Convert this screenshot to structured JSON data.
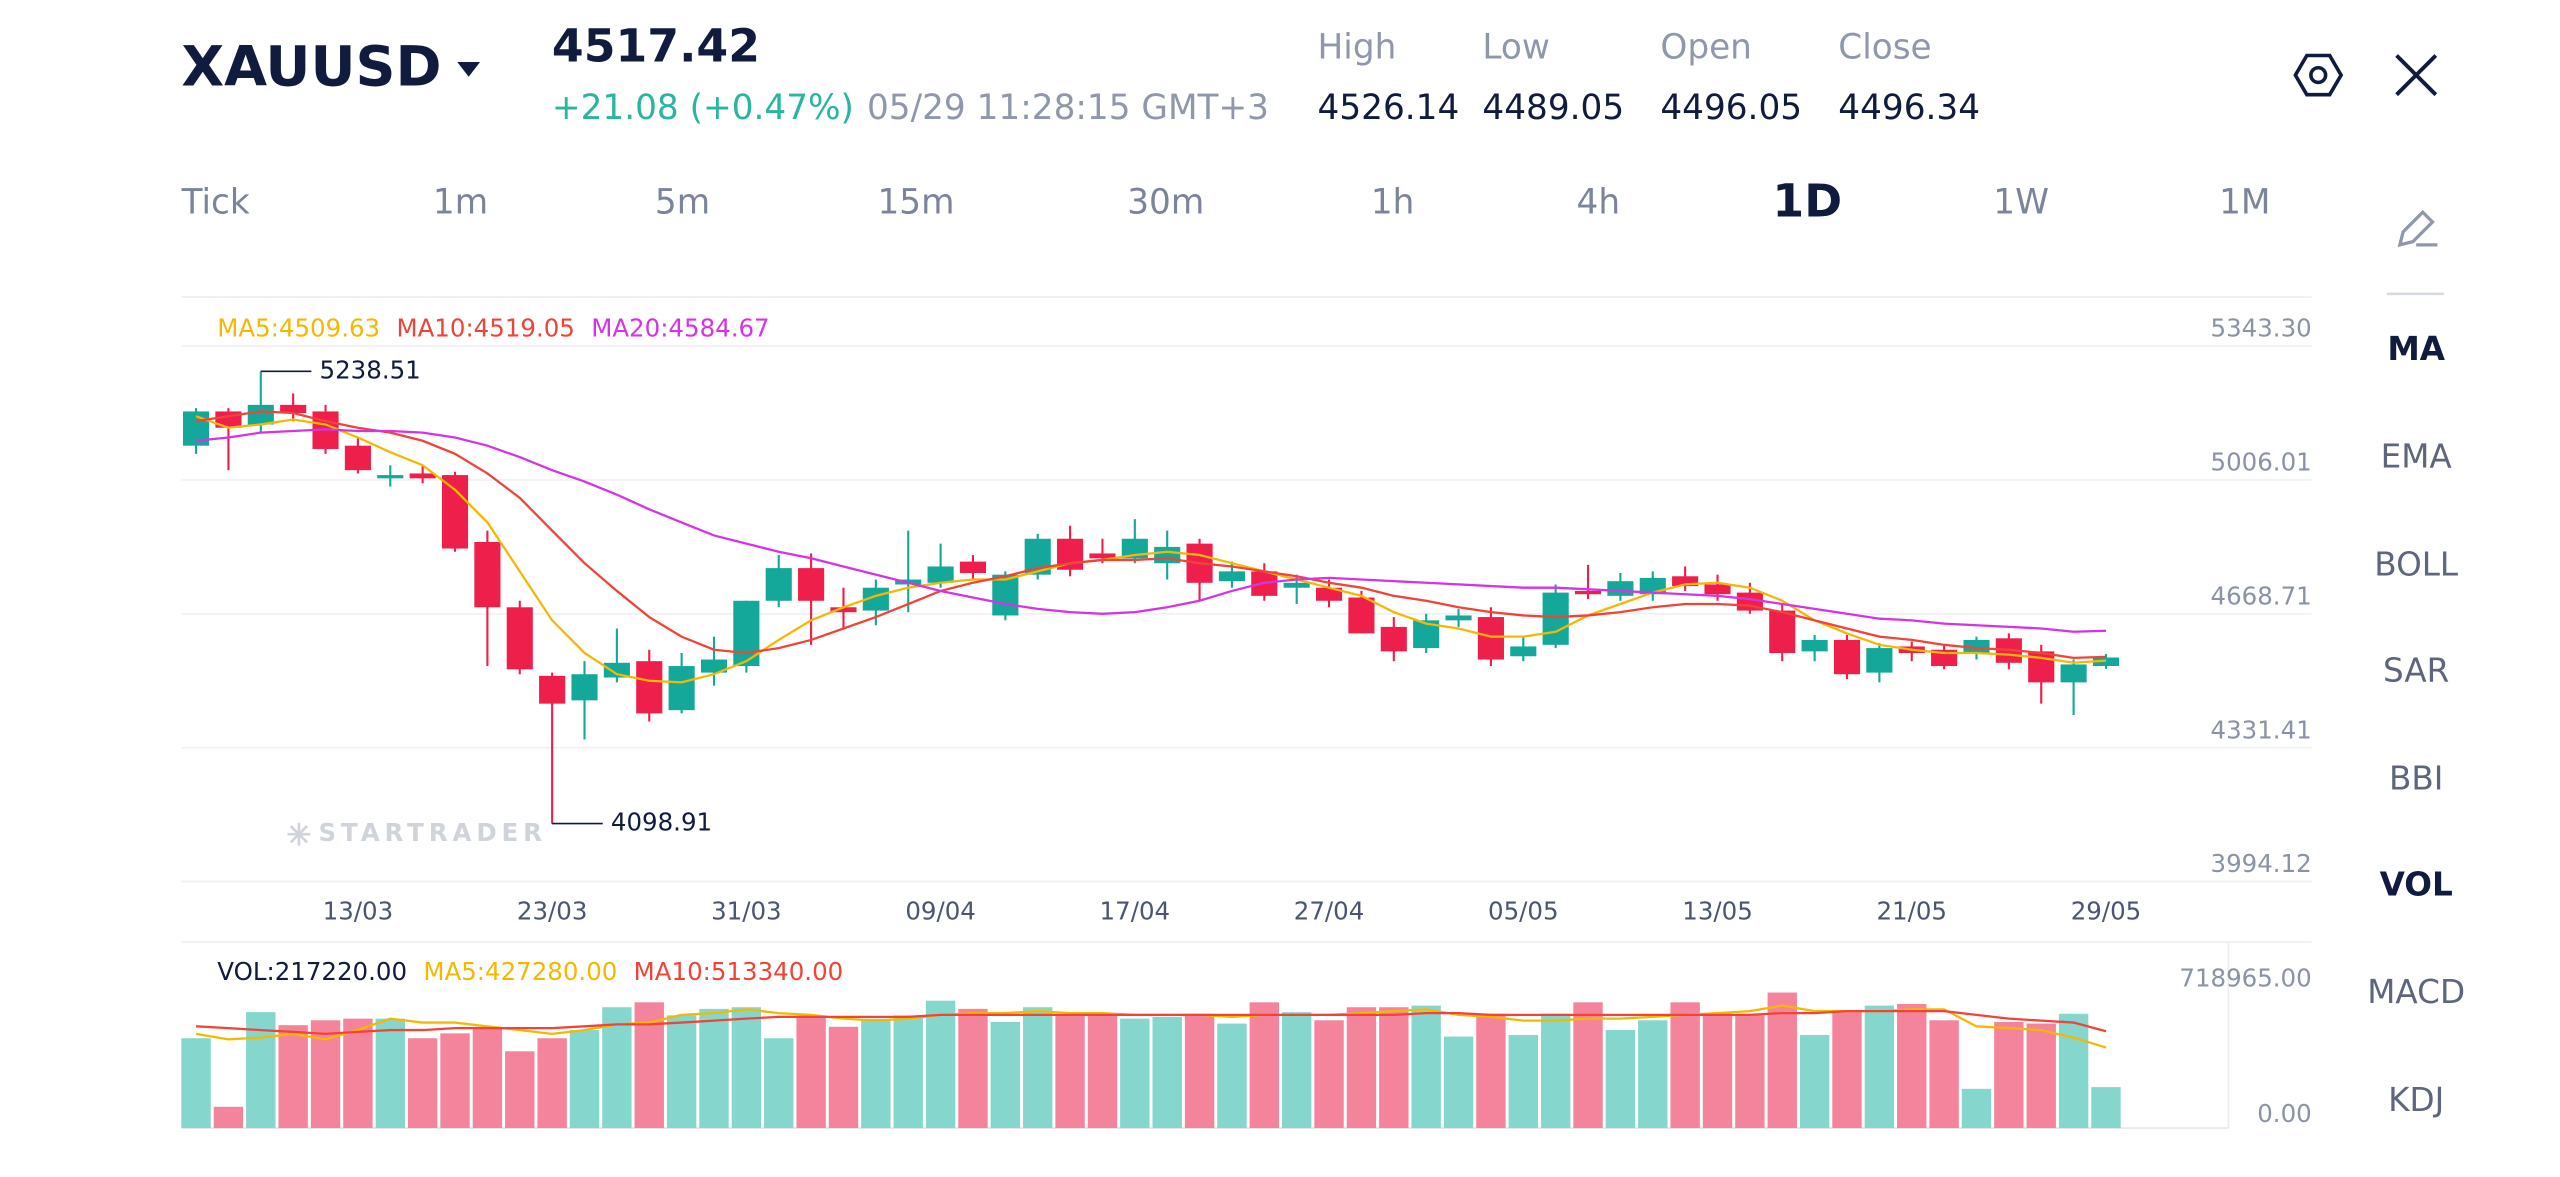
{
  "header": {
    "symbol": "XAUUSD",
    "price": "4517.42",
    "change": "+21.08 (+0.47%)",
    "time": "05/29 11:28:15 GMT+3",
    "stats": [
      {
        "label": "High",
        "value": "4526.14"
      },
      {
        "label": "Low",
        "value": "4489.05"
      },
      {
        "label": "Open",
        "value": "4496.05"
      },
      {
        "label": "Close",
        "value": "4496.34"
      }
    ]
  },
  "timeframes": [
    {
      "label": "Tick"
    },
    {
      "label": "1m"
    },
    {
      "label": "5m"
    },
    {
      "label": "15m"
    },
    {
      "label": "30m"
    },
    {
      "label": "1h"
    },
    {
      "label": "4h"
    },
    {
      "label": "1D",
      "selected": true
    },
    {
      "label": "1W"
    },
    {
      "label": "1M"
    }
  ],
  "indicators": [
    {
      "label": "MA",
      "selected": true
    },
    {
      "label": "EMA"
    },
    {
      "label": "BOLL"
    },
    {
      "label": "SAR"
    },
    {
      "label": "BBI"
    },
    {
      "label": "VOL",
      "selected": true
    },
    {
      "label": "MACD"
    },
    {
      "label": "KDJ"
    }
  ],
  "chart_data": [
    {
      "type": "candlestick",
      "categories": [
        null,
        null,
        null,
        null,
        null,
        "13/03",
        null,
        null,
        null,
        null,
        null,
        "23/03",
        null,
        null,
        null,
        null,
        null,
        "31/03",
        null,
        null,
        null,
        null,
        null,
        "09/04",
        null,
        null,
        null,
        null,
        null,
        "17/04",
        null,
        null,
        null,
        null,
        null,
        "27/04",
        null,
        null,
        null,
        null,
        null,
        "05/05",
        null,
        null,
        null,
        null,
        null,
        "13/05",
        null,
        null,
        null,
        null,
        null,
        "21/05",
        null,
        null,
        null,
        null,
        null,
        "29/05"
      ],
      "open": [
        5051.2,
        5137.5,
        5104.6,
        5154.0,
        5137.5,
        5051.2,
        4968.9,
        4981.2,
        4977.1,
        4808.5,
        4644.0,
        4471.2,
        4409.5,
        4467.1,
        4508.2,
        4384.8,
        4479.4,
        4495.9,
        4660.4,
        4742.7,
        4644.0,
        4635.7,
        4701.5,
        4705.7,
        4759.1,
        4623.4,
        4726.2,
        4816.7,
        4779.7,
        4767.4,
        4755.0,
        4804.4,
        4709.8,
        4734.5,
        4693.3,
        4693.3,
        4668.6,
        4594.6,
        4541.2,
        4611.1,
        4619.3,
        4520.6,
        4549.4,
        4685.1,
        4672.8,
        4676.9,
        4722.1,
        4701.5,
        4681.0,
        4635.7,
        4532.9,
        4561.7,
        4479.4,
        4545.3,
        4537.0,
        4528.8,
        4565.8,
        4532.9,
        4454.8,
        4496.05
      ],
      "high": [
        5145.8,
        5145.8,
        5238.51,
        5182.8,
        5154.0,
        5071.7,
        5001.8,
        5001.8,
        4985.3,
        4837.3,
        4660.4,
        4479.4,
        4508.2,
        4590.5,
        4537.0,
        4528.8,
        4570.0,
        4660.4,
        4775.6,
        4779.7,
        4693.3,
        4713.9,
        4837.3,
        4804.4,
        4775.6,
        4734.5,
        4829.1,
        4849.6,
        4816.7,
        4866.1,
        4837.3,
        4816.7,
        4759.1,
        4755.0,
        4726.2,
        4713.9,
        4685.1,
        4619.3,
        4627.5,
        4639.8,
        4644.0,
        4570.0,
        4701.5,
        4750.9,
        4730.4,
        4734.5,
        4746.8,
        4726.2,
        4705.7,
        4652.2,
        4574.1,
        4574.1,
        4553.5,
        4557.6,
        4549.4,
        4570.0,
        4578.2,
        4549.4,
        4512.4,
        4526.14
      ],
      "low": [
        5030.6,
        4989.5,
        5084.1,
        5112.8,
        5030.6,
        4981.2,
        4948.3,
        4956.6,
        4783.8,
        4495.9,
        4475.3,
        4098.91,
        4310.8,
        4454.8,
        4356.1,
        4376.6,
        4446.5,
        4479.4,
        4644.0,
        4549.4,
        4590.5,
        4598.7,
        4631.6,
        4693.3,
        4713.9,
        4611.1,
        4713.9,
        4722.1,
        4755.0,
        4755.0,
        4713.9,
        4660.4,
        4693.3,
        4660.4,
        4652.2,
        4644.0,
        4578.2,
        4508.2,
        4528.8,
        4594.6,
        4495.9,
        4508.2,
        4541.2,
        4664.5,
        4660.4,
        4660.4,
        4685.1,
        4660.4,
        4627.5,
        4508.2,
        4508.2,
        4463.0,
        4454.8,
        4508.2,
        4487.7,
        4512.4,
        4487.7,
        4401.2,
        4372.5,
        4489.05
      ],
      "close": [
        5137.5,
        5096.4,
        5154.0,
        5133.4,
        5042.9,
        4989.5,
        4977.1,
        4968.9,
        4792.0,
        4644.0,
        4487.7,
        4401.2,
        4475.3,
        4504.1,
        4376.6,
        4495.9,
        4512.4,
        4660.4,
        4742.7,
        4660.4,
        4631.6,
        4693.3,
        4713.9,
        4746.8,
        4730.4,
        4726.2,
        4816.7,
        4738.6,
        4767.4,
        4816.7,
        4796.1,
        4705.7,
        4734.5,
        4672.8,
        4705.7,
        4660.4,
        4578.2,
        4532.9,
        4611.1,
        4623.4,
        4512.4,
        4545.3,
        4681.0,
        4676.9,
        4709.8,
        4718.0,
        4697.4,
        4676.9,
        4635.7,
        4528.8,
        4561.7,
        4475.3,
        4541.2,
        4528.8,
        4495.9,
        4561.7,
        4504.1,
        4454.8,
        4500.0,
        4517.42
      ],
      "up_color": "#14a89a",
      "down_color": "#ee1f4a",
      "ylim": [
        3994.12,
        5343.3
      ],
      "yticks": [
        3994.12,
        4331.41,
        4668.71,
        5006.01,
        {
          "value": 5343.3,
          "label": "5343.30"
        }
      ],
      "grid": true,
      "watermark": "STARTRADER",
      "lines": [
        {
          "label": "MA5:4509.63",
          "color": "#f5b800",
          "values": [
            5125.2,
            5096.4,
            5104.6,
            5117.0,
            5104.6,
            5071.7,
            5034.7,
            5001.8,
            4940.1,
            4857.9,
            4734.5,
            4611.2,
            4528.9,
            4475.5,
            4459.0,
            4454.9,
            4475.5,
            4508.3,
            4561.8,
            4611.2,
            4644.1,
            4672.9,
            4693.4,
            4705.8,
            4714.0,
            4714.0,
            4734.5,
            4755.1,
            4763.3,
            4775.7,
            4783.9,
            4775.7,
            4755.1,
            4734.5,
            4714.0,
            4693.4,
            4672.9,
            4631.7,
            4603.0,
            4590.6,
            4570.0,
            4570.0,
            4582.4,
            4623.5,
            4652.3,
            4681.1,
            4701.6,
            4705.8,
            4693.4,
            4660.5,
            4611.2,
            4578.3,
            4549.5,
            4537.1,
            4528.9,
            4528.9,
            4524.7,
            4516.5,
            4504.2,
            4509.63
          ]
        },
        {
          "label": "MA10:4519.05",
          "color": "#f04438",
          "values": [
            5112.9,
            5125.2,
            5137.5,
            5133.4,
            5112.9,
            5096.4,
            5084.1,
            5063.5,
            5030.6,
            4981.3,
            4919.6,
            4837.4,
            4755.1,
            4685.2,
            4619.4,
            4570.0,
            4537.1,
            4528.9,
            4541.3,
            4561.8,
            4590.6,
            4619.4,
            4652.3,
            4685.2,
            4705.8,
            4722.2,
            4742.8,
            4755.1,
            4763.3,
            4763.3,
            4767.4,
            4755.1,
            4746.9,
            4734.5,
            4722.2,
            4705.8,
            4693.4,
            4672.9,
            4660.5,
            4644.1,
            4631.7,
            4623.5,
            4619.4,
            4623.5,
            4631.7,
            4644.1,
            4652.3,
            4652.3,
            4648.2,
            4631.7,
            4611.2,
            4590.6,
            4570.0,
            4561.8,
            4549.5,
            4541.3,
            4537.1,
            4528.9,
            4516.5,
            4519.05
          ]
        },
        {
          "label": "MA20:4584.67",
          "color": "#d633e6",
          "values": [
            5063.5,
            5071.7,
            5084.1,
            5088.2,
            5092.3,
            5088.2,
            5088.2,
            5084.1,
            5071.7,
            5051.2,
            5022.4,
            4989.5,
            4960.7,
            4927.8,
            4890.8,
            4857.9,
            4825.0,
            4804.4,
            4783.9,
            4767.4,
            4746.9,
            4726.3,
            4705.8,
            4685.2,
            4668.8,
            4652.3,
            4639.9,
            4631.7,
            4627.6,
            4631.7,
            4644.1,
            4660.5,
            4685.2,
            4705.8,
            4714.0,
            4718.1,
            4714.0,
            4709.9,
            4705.8,
            4701.6,
            4697.5,
            4693.4,
            4693.4,
            4689.3,
            4685.2,
            4681.1,
            4677.0,
            4672.9,
            4664.7,
            4652.3,
            4639.9,
            4627.6,
            4615.3,
            4611.2,
            4603.0,
            4598.9,
            4594.8,
            4590.6,
            4582.4,
            4584.67
          ]
        }
      ]
    },
    {
      "type": "bar",
      "label": "VOL:217220.00",
      "values": [
        476410,
        112606,
        615002,
        545706,
        571692,
        580354,
        580354,
        476410,
        502396,
        537044,
        407114,
        476410,
        519720,
        640988,
        666974,
        597678,
        632326,
        640988,
        476410,
        597678,
        537044,
        580354,
        597678,
        675636,
        632326,
        563030,
        640988,
        597678,
        606340,
        580354,
        589016,
        606340,
        554368,
        666974,
        615002,
        571692,
        640988,
        640988,
        649650,
        485072,
        606340,
        493734,
        606340,
        666974,
        519720,
        571692,
        666974,
        606340,
        597678,
        718965,
        493734,
        623664,
        649650,
        658312,
        571692,
        207888,
        563030,
        554368,
        606340,
        217220
      ],
      "up_color": "#85d6cc",
      "down_color": "#f3849b",
      "ylim": [
        0,
        718965
      ],
      "yticks": [
        {
          "value": 0,
          "label": "0.00"
        },
        {
          "value": 718965,
          "label": "718965.00"
        }
      ],
      "grid": false,
      "lines": [
        {
          "label": "MA5:427280.00",
          "color": "#f5b800",
          "values": [
            500000,
            470000,
            480000,
            500000,
            470000,
            520000,
            580000,
            560000,
            560000,
            540000,
            520000,
            500000,
            520000,
            550000,
            560000,
            600000,
            610000,
            630000,
            610000,
            600000,
            580000,
            570000,
            580000,
            600000,
            610000,
            610000,
            620000,
            610000,
            610000,
            600000,
            600000,
            600000,
            590000,
            600000,
            600000,
            600000,
            610000,
            620000,
            630000,
            600000,
            590000,
            570000,
            570000,
            580000,
            580000,
            590000,
            600000,
            610000,
            620000,
            650000,
            620000,
            620000,
            620000,
            630000,
            630000,
            540000,
            530000,
            520000,
            480000,
            427280
          ]
        },
        {
          "label": "MA10:513340.00",
          "color": "#f04438",
          "values": [
            540000,
            530000,
            520000,
            510000,
            500000,
            510000,
            520000,
            520000,
            530000,
            530000,
            530000,
            530000,
            540000,
            550000,
            550000,
            560000,
            570000,
            580000,
            590000,
            590000,
            590000,
            590000,
            590000,
            600000,
            600000,
            600000,
            600000,
            600000,
            600000,
            600000,
            600000,
            600000,
            600000,
            600000,
            600000,
            600000,
            600000,
            600000,
            610000,
            610000,
            600000,
            600000,
            600000,
            600000,
            600000,
            600000,
            600000,
            600000,
            600000,
            610000,
            610000,
            620000,
            620000,
            620000,
            620000,
            600000,
            580000,
            570000,
            560000,
            513340
          ]
        }
      ]
    }
  ]
}
